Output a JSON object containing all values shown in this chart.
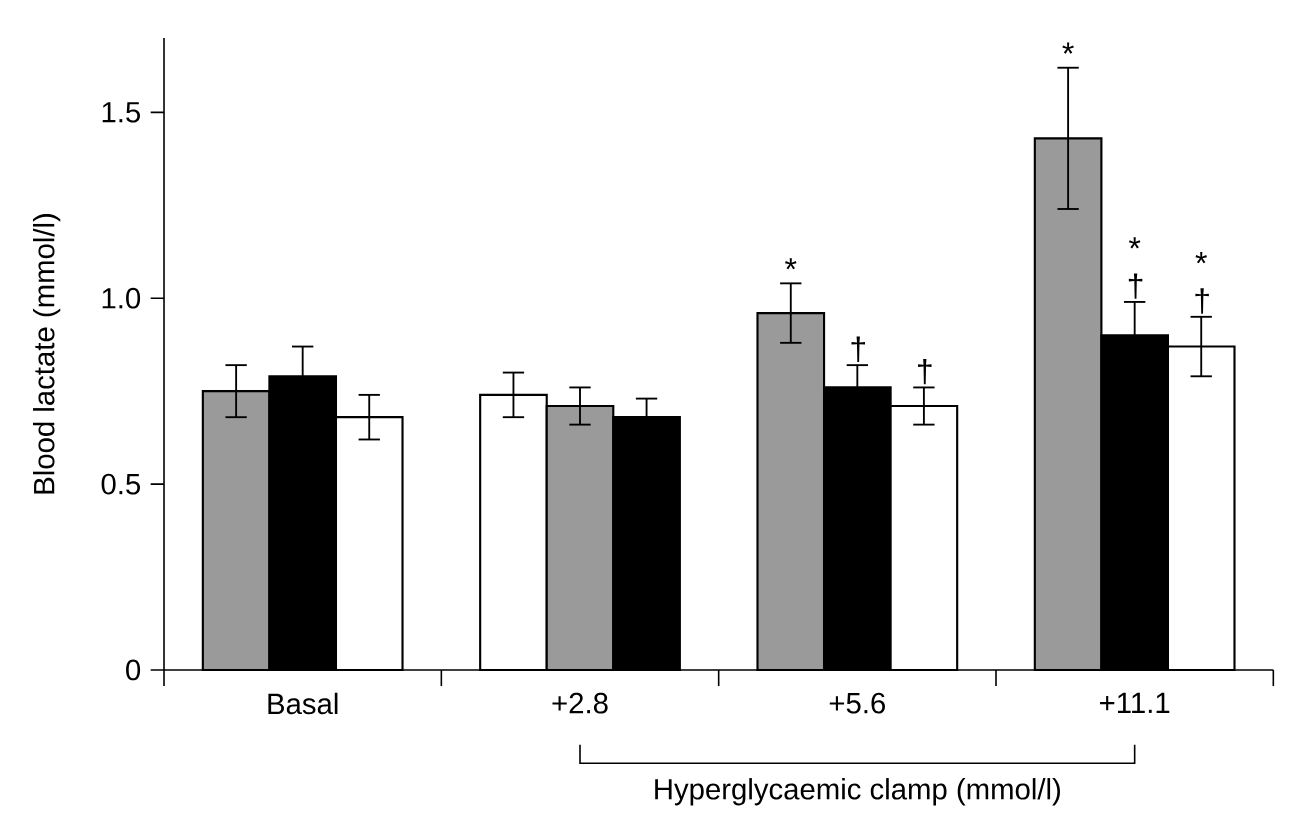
{
  "chart_data": {
    "type": "bar",
    "ylabel": "Blood lactate (mmol/l)",
    "xlabel": "Hyperglycaemic clamp (mmol/l)",
    "categories": [
      "Basal",
      "+2.8",
      "+5.6",
      "+11.1"
    ],
    "series": [
      {
        "colors": [
          "#9a9a9a",
          "#ffffff",
          "#9a9a9a",
          "#9a9a9a"
        ],
        "values": [
          0.75,
          0.74,
          0.96,
          1.43
        ],
        "errors": [
          0.07,
          0.06,
          0.08,
          0.19
        ],
        "value_labels": [
          null,
          null,
          "*",
          "*"
        ]
      },
      {
        "colors": [
          "#000000",
          "#9a9a9a",
          "#000000",
          "#000000"
        ],
        "values": [
          0.79,
          0.71,
          0.76,
          0.9
        ],
        "errors": [
          0.08,
          0.05,
          0.06,
          0.09
        ],
        "value_labels": [
          null,
          null,
          "†",
          "* †"
        ]
      },
      {
        "colors": [
          "#ffffff",
          "#000000",
          "#ffffff",
          "#ffffff"
        ],
        "values": [
          0.68,
          0.68,
          0.71,
          0.87
        ],
        "errors": [
          0.06,
          0.05,
          0.05,
          0.08
        ],
        "value_labels": [
          null,
          null,
          "†",
          "* †"
        ]
      }
    ],
    "ylim": [
      0,
      1.7
    ],
    "yticks": [
      0,
      0.5,
      {
        "value": 1,
        "label": "1.0"
      },
      1.5
    ]
  }
}
